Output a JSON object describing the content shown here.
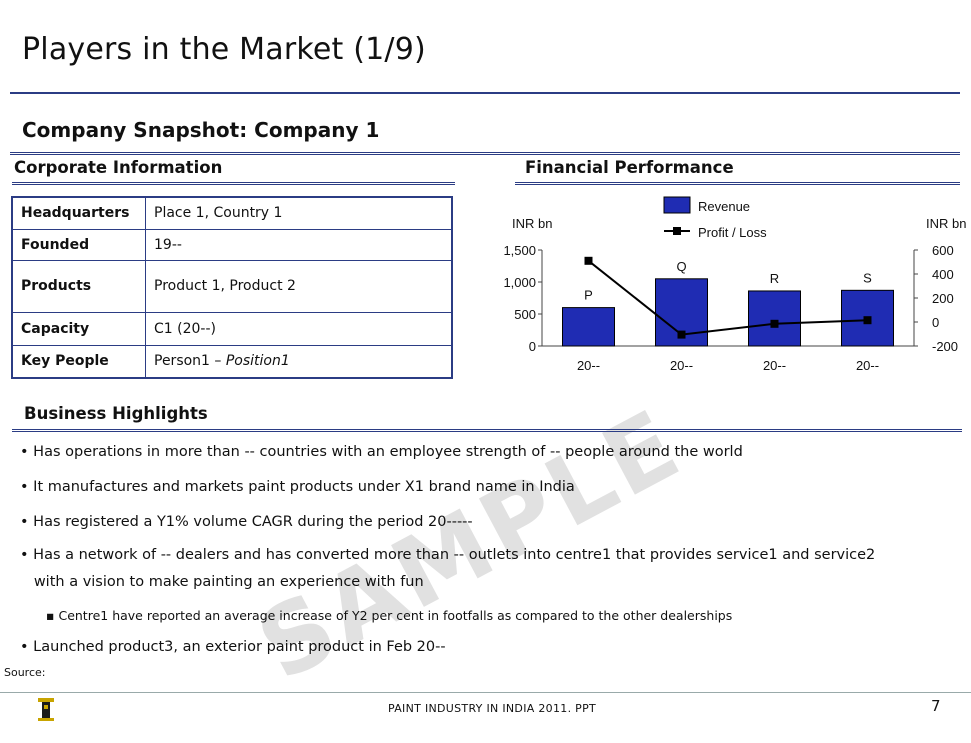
{
  "slide": {
    "title": "Players in the Market (1/9)",
    "subtitle": "Company Snapshot: Company 1",
    "footer": "PAINT INDUSTRY IN INDIA 2011. PPT",
    "page_number": "7",
    "source": "Source:",
    "watermark": "SAMPLE"
  },
  "corporate": {
    "heading": "Corporate Information",
    "rows": [
      {
        "key": "Headquarters",
        "value": "Place 1, Country 1"
      },
      {
        "key": "Founded",
        "value": "19--"
      },
      {
        "key": "Products",
        "value": "Product 1, Product 2"
      },
      {
        "key": "Capacity",
        "value": "C1 (20--)"
      },
      {
        "key": "Key People",
        "value_plain": "Person1 – ",
        "value_italic": "Position1"
      }
    ]
  },
  "financial": {
    "heading": "Financial Performance"
  },
  "business": {
    "heading": "Business Highlights",
    "bullets": [
      "• Has operations in more than -- countries with an employee strength of -- people around the world",
      "•  It manufactures and markets paint products under X1 brand name in India",
      "• Has registered a Y1% volume CAGR during the period 20-----",
      "• Has a network of -- dealers and has converted more than -- outlets into centre1 that provides service1 and service2",
      "   with a vision to make painting an experience with fun"
    ],
    "sub_bullet_marker": "▪",
    "sub_bullet": "Centre1  have reported an average increase of Y2 per cent in footfalls as compared to the other dealerships",
    "last_bullet": "• Launched product3, an exterior paint product in Feb 20--"
  },
  "chart_data": {
    "type": "bar",
    "categories": [
      "20--",
      "20--",
      "20--",
      "20--"
    ],
    "bar_labels": [
      "P",
      "Q",
      "R",
      "S"
    ],
    "series": [
      {
        "name": "Revenue",
        "type": "bar",
        "axis": "left",
        "values": [
          600,
          1050,
          860,
          870
        ],
        "color": "#1f2cb3"
      },
      {
        "name": "Profit / Loss",
        "type": "line",
        "axis": "right",
        "values": [
          510,
          -105,
          -15,
          15
        ],
        "color": "#000000"
      }
    ],
    "ylabel_left": "INR bn",
    "ylabel_right": "INR bn",
    "ylim_left": [
      0,
      1500
    ],
    "yticks_left": [
      "0",
      "500",
      "1,000",
      "1,500"
    ],
    "ylim_right": [
      -200,
      600
    ],
    "yticks_right": [
      "-200",
      "0",
      "200",
      "400",
      "600"
    ],
    "legend_position": "top-center",
    "grid": false
  }
}
